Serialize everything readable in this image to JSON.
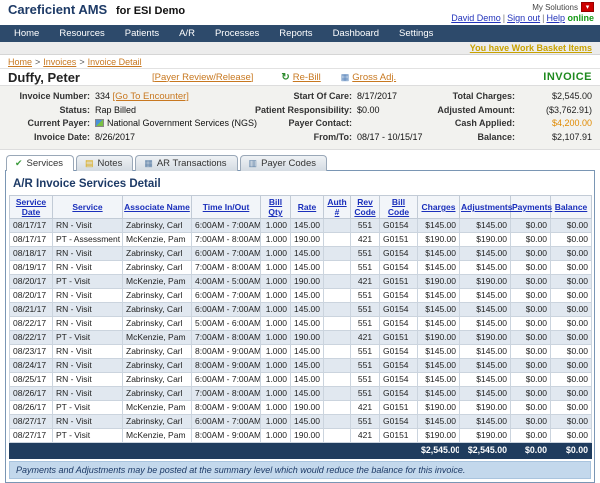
{
  "app": {
    "brand": "Careficient AMS",
    "brand_suffix": "for ESI Demo"
  },
  "top": {
    "my_solutions": "My Solutions",
    "user": "David Demo",
    "sign_out": "Sign out",
    "help": "Help",
    "help_status": "online",
    "link_sep": "|"
  },
  "nav": {
    "items": [
      "Home",
      "Resources",
      "Patients",
      "A/R",
      "Processes",
      "Reports",
      "Dashboard",
      "Settings"
    ],
    "work_basket": "You have Work Basket Items"
  },
  "breadcrumb": {
    "home": "Home",
    "invoices": "Invoices",
    "current": "Invoice Detail",
    "sep": ">"
  },
  "patient": {
    "name": "Duffy, Peter",
    "payer_review": "[Payer Review/Release]",
    "rebill": "Re-Bill",
    "gross_adj": "Gross Adj.",
    "doc_type": "INVOICE"
  },
  "invoice": {
    "invoice_number_label": "Invoice Number:",
    "invoice_number": "334",
    "go_to_encounter": "[Go To Encounter]",
    "status_label": "Status:",
    "status": "Rap Billed",
    "current_payer_label": "Current Payer:",
    "current_payer": "National Government Services (NGS)",
    "invoice_date_label": "Invoice Date:",
    "invoice_date": "8/26/2017",
    "start_of_care_label": "Start Of Care:",
    "start_of_care": "8/17/2017",
    "patient_responsibility_label": "Patient Responsibility:",
    "patient_responsibility": "$0.00",
    "payer_contact_label": "Payer Contact:",
    "payer_contact": "",
    "from_to_label": "From/To:",
    "from_to": "08/17 - 10/15/17",
    "total_charges_label": "Total Charges:",
    "total_charges": "$2,545.00",
    "adjusted_amount_label": "Adjusted Amount:",
    "adjusted_amount": "($3,762.91)",
    "cash_applied_label": "Cash Applied:",
    "cash_applied": "$4,200.00",
    "balance_label": "Balance:",
    "balance": "$2,107.91"
  },
  "tabs": {
    "services": "Services",
    "notes": "Notes",
    "ar_transactions": "AR Transactions",
    "payer_codes": "Payer Codes"
  },
  "icons": {
    "dropdown": "▾",
    "services_tab": "✔",
    "notes_tab": "▤",
    "ar_tab": "▦",
    "payer_codes_tab": "▥",
    "rebill": "↻",
    "gross_adj": "▦"
  },
  "services": {
    "title": "A/R Invoice Services Detail",
    "columns": [
      "Service Date",
      "Service",
      "Associate Name",
      "Time In/Out",
      "Bill Qty",
      "Rate",
      "Auth #",
      "Rev Code",
      "Bill Code",
      "Charges",
      "Adjustments",
      "Payments",
      "Balance"
    ],
    "rows": [
      [
        "08/17/17",
        "RN - Visit",
        "Zabrinsky, Carl",
        "6:00AM - 7:00AM",
        "1.000",
        "145.00",
        "",
        "551",
        "G0154",
        "$145.00",
        "$145.00",
        "$0.00",
        "$0.00"
      ],
      [
        "08/17/17",
        "PT - Assessment Visit",
        "McKenzie, Pam",
        "7:00AM - 8:00AM",
        "1.000",
        "190.00",
        "",
        "421",
        "G0151",
        "$190.00",
        "$190.00",
        "$0.00",
        "$0.00"
      ],
      [
        "08/18/17",
        "RN - Visit",
        "Zabrinsky, Carl",
        "6:00AM - 7:00AM",
        "1.000",
        "145.00",
        "",
        "551",
        "G0154",
        "$145.00",
        "$145.00",
        "$0.00",
        "$0.00"
      ],
      [
        "08/19/17",
        "RN - Visit",
        "Zabrinsky, Carl",
        "7:00AM - 8:00AM",
        "1.000",
        "145.00",
        "",
        "551",
        "G0154",
        "$145.00",
        "$145.00",
        "$0.00",
        "$0.00"
      ],
      [
        "08/20/17",
        "PT - Visit",
        "McKenzie, Pam",
        "4:00AM - 5:00AM",
        "1.000",
        "190.00",
        "",
        "421",
        "G0151",
        "$190.00",
        "$190.00",
        "$0.00",
        "$0.00"
      ],
      [
        "08/20/17",
        "RN - Visit",
        "Zabrinsky, Carl",
        "6:00AM - 7:00AM",
        "1.000",
        "145.00",
        "",
        "551",
        "G0154",
        "$145.00",
        "$145.00",
        "$0.00",
        "$0.00"
      ],
      [
        "08/21/17",
        "RN - Visit",
        "Zabrinsky, Carl",
        "6:00AM - 7:00AM",
        "1.000",
        "145.00",
        "",
        "551",
        "G0154",
        "$145.00",
        "$145.00",
        "$0.00",
        "$0.00"
      ],
      [
        "08/22/17",
        "RN - Visit",
        "Zabrinsky, Carl",
        "5:00AM - 6:00AM",
        "1.000",
        "145.00",
        "",
        "551",
        "G0154",
        "$145.00",
        "$145.00",
        "$0.00",
        "$0.00"
      ],
      [
        "08/22/17",
        "PT - Visit",
        "McKenzie, Pam",
        "7:00AM - 8:00AM",
        "1.000",
        "190.00",
        "",
        "421",
        "G0151",
        "$190.00",
        "$190.00",
        "$0.00",
        "$0.00"
      ],
      [
        "08/23/17",
        "RN - Visit",
        "Zabrinsky, Carl",
        "8:00AM - 9:00AM",
        "1.000",
        "145.00",
        "",
        "551",
        "G0154",
        "$145.00",
        "$145.00",
        "$0.00",
        "$0.00"
      ],
      [
        "08/24/17",
        "RN - Visit",
        "Zabrinsky, Carl",
        "8:00AM - 9:00AM",
        "1.000",
        "145.00",
        "",
        "551",
        "G0154",
        "$145.00",
        "$145.00",
        "$0.00",
        "$0.00"
      ],
      [
        "08/25/17",
        "RN - Visit",
        "Zabrinsky, Carl",
        "6:00AM - 7:00AM",
        "1.000",
        "145.00",
        "",
        "551",
        "G0154",
        "$145.00",
        "$145.00",
        "$0.00",
        "$0.00"
      ],
      [
        "08/26/17",
        "RN - Visit",
        "Zabrinsky, Carl",
        "7:00AM - 8:00AM",
        "1.000",
        "145.00",
        "",
        "551",
        "G0154",
        "$145.00",
        "$145.00",
        "$0.00",
        "$0.00"
      ],
      [
        "08/26/17",
        "PT - Visit",
        "McKenzie, Pam",
        "8:00AM - 9:00AM",
        "1.000",
        "190.00",
        "",
        "421",
        "G0151",
        "$190.00",
        "$190.00",
        "$0.00",
        "$0.00"
      ],
      [
        "08/27/17",
        "RN - Visit",
        "Zabrinsky, Carl",
        "6:00AM - 7:00AM",
        "1.000",
        "145.00",
        "",
        "551",
        "G0154",
        "$145.00",
        "$145.00",
        "$0.00",
        "$0.00"
      ],
      [
        "08/27/17",
        "PT - Visit",
        "McKenzie, Pam",
        "8:00AM - 9:00AM",
        "1.000",
        "190.00",
        "",
        "421",
        "G0151",
        "$190.00",
        "$190.00",
        "$0.00",
        "$0.00"
      ]
    ],
    "totals": {
      "charges": "$2,545.00",
      "adjustments": "$2,545.00",
      "payments": "$0.00",
      "balance": "$0.00"
    },
    "note": "Payments and Adjustments may be posted at the summary level which would reduce the balance for this invoice."
  },
  "colors": {
    "navy": "#2d4a6b",
    "totals_bg": "#1f3c5e",
    "accent_orange": "#c87820",
    "cash_orange": "#e08a00",
    "invoice_green": "#1f8a1f",
    "link_blue": "#2233bb",
    "column_link_blue": "#1a2fbb",
    "row_alt": "#e1e8f0",
    "note_bg": "#c3d8ec",
    "work_basket_gold": "#c8a200",
    "my_solutions_red": "#cc0000"
  }
}
